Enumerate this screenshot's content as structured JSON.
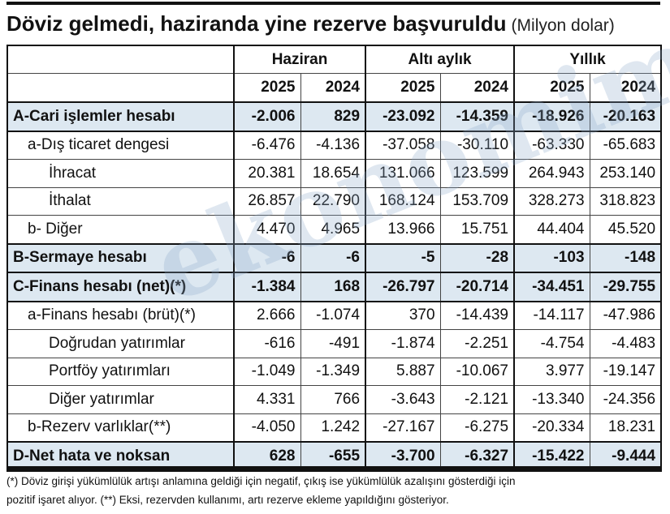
{
  "header": {
    "title": "Döviz gelmedi, haziranda yine rezerve başvuruldu",
    "subtitle": "(Milyon dolar)"
  },
  "table": {
    "groups": [
      "Haziran",
      "Altı aylık",
      "Yıllık"
    ],
    "years": [
      "2025",
      "2024",
      "2025",
      "2024",
      "2025",
      "2024"
    ],
    "rows": [
      [
        "A-Cari işlemler hesabı",
        "-2.006",
        "829",
        "-23.092",
        "-14.359",
        "-18.926",
        "-20.163"
      ],
      [
        "a-Dış ticaret dengesi",
        "-6.476",
        "-4.136",
        "-37.058",
        "-30.110",
        "-63.330",
        "-65.683"
      ],
      [
        "İhracat",
        "20.381",
        "18.654",
        "131.066",
        "123.599",
        "264.943",
        "253.140"
      ],
      [
        "İthalat",
        "26.857",
        "22.790",
        "168.124",
        "153.709",
        "328.273",
        "318.823"
      ],
      [
        "b- Diğer",
        "4.470",
        "4.965",
        "13.966",
        "15.751",
        "44.404",
        "45.520"
      ],
      [
        "B-Sermaye hesabı",
        "-6",
        "-6",
        "-5",
        "-28",
        "-103",
        "-148"
      ],
      [
        "C-Finans hesabı (net)(*)",
        "-1.384",
        "168",
        "-26.797",
        "-20.714",
        "-34.451",
        "-29.755"
      ],
      [
        "a-Finans hesabı (brüt)(*)",
        "2.666",
        "-1.074",
        "370",
        "-14.439",
        "-14.117",
        "-47.986"
      ],
      [
        "Doğrudan yatırımlar",
        "-616",
        "-491",
        "-1.874",
        "-2.251",
        "-4.754",
        "-4.483"
      ],
      [
        "Portföy yatırımları",
        "-1.049",
        "-1.349",
        "5.887",
        "-10.067",
        "3.977",
        "-19.147"
      ],
      [
        "Diğer yatırımlar",
        "4.331",
        "766",
        "-3.643",
        "-2.121",
        "-13.340",
        "-24.356"
      ],
      [
        "b-Rezerv varlıklar(**)",
        "-4.050",
        "1.242",
        "-27.167",
        "-6.275",
        "-20.334",
        "18.231"
      ],
      [
        "D-Net hata ve noksan",
        "628",
        "-655",
        "-3.700",
        "-6.327",
        "-15.422",
        "-9.444"
      ]
    ]
  },
  "watermark": "ekonomim",
  "notes": [
    "(*) Döviz girişi yükümlülük artışı anlamına geldiği için negatif, çıkış ise yükümlülük azalışını gösterdiği için",
    "pozitif işaret alıyor. (**) Eksi, rezervden kullanımı, artı rezerve ekleme yapıldığını gösteriyor."
  ]
}
